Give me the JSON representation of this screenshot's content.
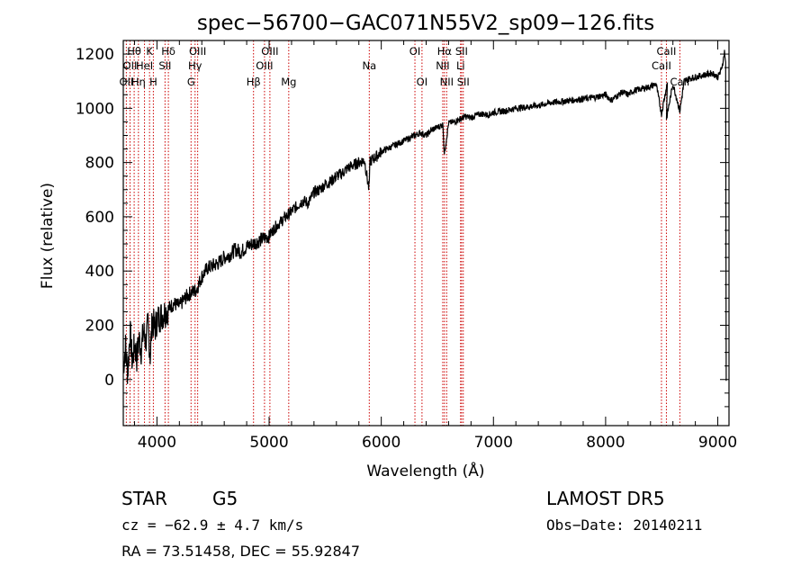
{
  "chart_data": {
    "type": "line",
    "title": "spec−56700−GAC071N55V2_sp09−126.fits",
    "xlabel": "Wavelength (Å)",
    "ylabel": "Flux (relative)",
    "xlim": [
      3700,
      9100
    ],
    "ylim": [
      -170,
      1250
    ],
    "xticks": [
      4000,
      5000,
      6000,
      7000,
      8000,
      9000
    ],
    "yticks": [
      0,
      200,
      400,
      600,
      800,
      1000,
      1200
    ],
    "grid": false,
    "series": [
      {
        "x": [
          3700,
          3720,
          3740,
          3760,
          3780,
          3800,
          3820,
          3840,
          3860,
          3880,
          3900,
          3920,
          3940,
          3960,
          3980,
          4000,
          4050,
          4100,
          4150,
          4200,
          4250,
          4300,
          4350,
          4400,
          4450,
          4500,
          4550,
          4600,
          4650,
          4700,
          4750,
          4800,
          4850,
          4900,
          4950,
          5000,
          5050,
          5100,
          5150,
          5200,
          5250,
          5300,
          5350,
          5400,
          5450,
          5500,
          5550,
          5600,
          5650,
          5700,
          5750,
          5800,
          5850,
          5890,
          5900,
          5950,
          6000,
          6050,
          6100,
          6150,
          6200,
          6250,
          6300,
          6350,
          6400,
          6450,
          6500,
          6550,
          6562,
          6600,
          6650,
          6700,
          6750,
          6800,
          6850,
          6900,
          6950,
          7000,
          7100,
          7200,
          7300,
          7400,
          7500,
          7600,
          7700,
          7800,
          7900,
          8000,
          8050,
          8100,
          8150,
          8200,
          8250,
          8300,
          8350,
          8400,
          8450,
          8498,
          8550,
          8542,
          8600,
          8662,
          8700,
          8750,
          8800,
          8850,
          8900,
          8950,
          9000,
          9030,
          9050,
          9060,
          9070
        ],
        "y": [
          50,
          120,
          20,
          180,
          60,
          130,
          80,
          150,
          110,
          180,
          140,
          200,
          90,
          230,
          180,
          220,
          240,
          260,
          280,
          270,
          300,
          320,
          330,
          380,
          410,
          420,
          430,
          450,
          460,
          480,
          470,
          490,
          500,
          510,
          520,
          530,
          560,
          580,
          600,
          620,
          640,
          660,
          650,
          690,
          700,
          720,
          730,
          750,
          760,
          780,
          790,
          800,
          810,
          700,
          805,
          820,
          840,
          850,
          860,
          870,
          880,
          890,
          900,
          910,
          900,
          920,
          930,
          940,
          830,
          945,
          950,
          960,
          970,
          965,
          975,
          980,
          975,
          985,
          990,
          1000,
          1005,
          1010,
          1020,
          1025,
          1030,
          1035,
          1040,
          1050,
          1030,
          1045,
          1060,
          1050,
          1065,
          1070,
          1075,
          1080,
          1090,
          980,
          1095,
          960,
          1090,
          990,
          1100,
          1110,
          1115,
          1120,
          1125,
          1130,
          1115,
          1140,
          1180,
          1210,
          1170
        ]
      }
    ],
    "line_markers": [
      {
        "wavelength": 3727,
        "labels": [
          "OII"
        ],
        "label_row": 2
      },
      {
        "wavelength": 3760,
        "labels": [
          "OII"
        ],
        "label_row": 1
      },
      {
        "wavelength": 3797,
        "labels": [
          "Hθ"
        ],
        "label_row": 0
      },
      {
        "wavelength": 3835,
        "labels": [
          "Hη"
        ],
        "label_row": 2
      },
      {
        "wavelength": 3889,
        "labels": [
          "HeI"
        ],
        "label_row": 1
      },
      {
        "wavelength": 3934,
        "labels": [
          "K"
        ],
        "label_row": 0
      },
      {
        "wavelength": 3968,
        "labels": [
          "H"
        ],
        "label_row": 2
      },
      {
        "wavelength": 4072,
        "labels": [
          "SII"
        ],
        "label_row": 1
      },
      {
        "wavelength": 4102,
        "labels": [
          "Hδ"
        ],
        "label_row": 0
      },
      {
        "wavelength": 4304,
        "labels": [
          "G"
        ],
        "label_row": 2
      },
      {
        "wavelength": 4340,
        "labels": [
          "Hγ"
        ],
        "label_row": 1
      },
      {
        "wavelength": 4363,
        "labels": [
          "OIII"
        ],
        "label_row": 0
      },
      {
        "wavelength": 4861,
        "labels": [
          "Hβ"
        ],
        "label_row": 2
      },
      {
        "wavelength": 4959,
        "labels": [
          "OIII"
        ],
        "label_row": 1
      },
      {
        "wavelength": 5007,
        "labels": [
          "OIII"
        ],
        "label_row": 0
      },
      {
        "wavelength": 5175,
        "labels": [
          "Mg"
        ],
        "label_row": 2
      },
      {
        "wavelength": 5893,
        "labels": [
          "Na"
        ],
        "label_row": 1
      },
      {
        "wavelength": 6300,
        "labels": [
          "OI"
        ],
        "label_row": 0
      },
      {
        "wavelength": 6363,
        "labels": [
          "OI"
        ],
        "label_row": 2
      },
      {
        "wavelength": 6548,
        "labels": [
          "NII"
        ],
        "label_row": 1
      },
      {
        "wavelength": 6563,
        "labels": [
          "Hα"
        ],
        "label_row": 0
      },
      {
        "wavelength": 6583,
        "labels": [
          "NII"
        ],
        "label_row": 2
      },
      {
        "wavelength": 6716,
        "labels": [
          "SII"
        ],
        "label_row": 0
      },
      {
        "wavelength": 6707,
        "labels": [
          "Li"
        ],
        "label_row": 1
      },
      {
        "wavelength": 6731,
        "labels": [
          "SII"
        ],
        "label_row": 2
      },
      {
        "wavelength": 8498,
        "labels": [
          "CaII"
        ],
        "label_row": 1
      },
      {
        "wavelength": 8542,
        "labels": [
          "CaII"
        ],
        "label_row": 0
      },
      {
        "wavelength": 8662,
        "labels": [
          "CaII"
        ],
        "label_row": 2
      }
    ]
  },
  "info": {
    "object_class": "STAR",
    "subclass": "G5",
    "survey": "LAMOST  DR5",
    "cz": "cz = −62.9 ± 4.7 km/s",
    "obs_date": "Obs−Date: 20140211",
    "radec": "RA =  73.51458, DEC =  55.92847"
  },
  "colors": {
    "spectrum": "#000000",
    "line_markers": "#cc0000",
    "axes": "#000000"
  }
}
